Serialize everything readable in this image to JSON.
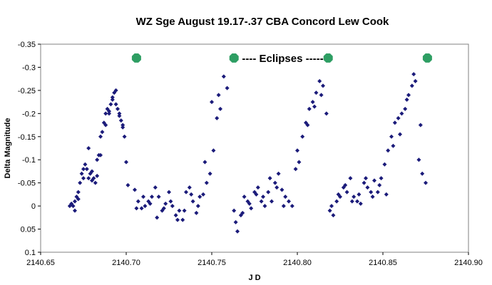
{
  "chart_data": {
    "type": "scatter",
    "title": "WZ Sge August 19.17-.37 CBA Concord Lew Cook",
    "xlabel": "J D",
    "ylabel": "Delta Magnitude",
    "xlim": [
      2140.65,
      2140.9
    ],
    "ylim": [
      -0.35,
      0.1
    ],
    "y_inverted": true,
    "grid": false,
    "legend": "none",
    "x_ticks": [
      2140.65,
      2140.7,
      2140.75,
      2140.8,
      2140.85,
      2140.9
    ],
    "x_tick_labels": [
      "2140.65",
      "2140.70",
      "2140.75",
      "2140.80",
      "2140.85",
      "2140.90"
    ],
    "y_ticks": [
      -0.35,
      -0.3,
      -0.25,
      -0.2,
      -0.15,
      -0.1,
      -0.05,
      0,
      0.05,
      0.1
    ],
    "y_tick_labels": [
      "-0.35",
      "-0.3",
      "-0.25",
      "-0.2",
      "-0.15",
      "-0.1",
      "-0.05",
      "0",
      "0.05",
      "0.1"
    ],
    "colors": {
      "points": "#1b1b7a",
      "eclipse": "#2e9e63",
      "plot_bg": "#ffffff"
    },
    "annotation": "---- Eclipses ------",
    "eclipses": {
      "x": [
        2140.706,
        2140.763,
        2140.818,
        2140.876
      ],
      "y": [
        -0.32,
        -0.32,
        -0.32,
        -0.32
      ]
    },
    "series": [
      {
        "x": [
          2140.667,
          2140.668,
          2140.669,
          2140.67,
          2140.671,
          2140.672,
          2140.673,
          2140.674,
          2140.675,
          2140.676,
          2140.677,
          2140.678,
          2140.679,
          2140.68,
          2140.681,
          2140.682,
          2140.683,
          2140.684,
          2140.685,
          2140.686,
          2140.687,
          2140.688,
          2140.689,
          2140.69,
          2140.691,
          2140.692,
          2140.693,
          2140.694,
          2140.695,
          2140.696,
          2140.697,
          2140.698,
          2140.699,
          2140.7,
          2140.701,
          2140.67,
          2140.672,
          2140.675,
          2140.678,
          2140.68,
          2140.683,
          2140.685,
          2140.688,
          2140.69,
          2140.692,
          2140.694,
          2140.696,
          2140.698,
          2140.705,
          2140.707,
          2140.709,
          2140.711,
          2140.713,
          2140.715,
          2140.717,
          2140.719,
          2140.721,
          2140.723,
          2140.725,
          2140.727,
          2140.729,
          2140.731,
          2140.733,
          2140.735,
          2140.737,
          2140.739,
          2140.741,
          2140.743,
          2140.745,
          2140.747,
          2140.749,
          2140.751,
          2140.753,
          2140.755,
          2140.757,
          2140.759,
          2140.706,
          2140.71,
          2140.714,
          2140.718,
          2140.722,
          2140.726,
          2140.73,
          2140.734,
          2140.738,
          2140.742,
          2140.746,
          2140.75,
          2140.754,
          2140.763,
          2140.765,
          2140.767,
          2140.769,
          2140.771,
          2140.773,
          2140.775,
          2140.777,
          2140.779,
          2140.781,
          2140.783,
          2140.785,
          2140.787,
          2140.789,
          2140.791,
          2140.793,
          2140.795,
          2140.797,
          2140.799,
          2140.801,
          2140.803,
          2140.805,
          2140.807,
          2140.809,
          2140.811,
          2140.813,
          2140.815,
          2140.817,
          2140.764,
          2140.768,
          2140.772,
          2140.776,
          2140.78,
          2140.784,
          2140.788,
          2140.792,
          2140.8,
          2140.806,
          2140.81,
          2140.814,
          2140.819,
          2140.821,
          2140.823,
          2140.825,
          2140.827,
          2140.829,
          2140.831,
          2140.833,
          2140.835,
          2140.837,
          2140.839,
          2140.841,
          2140.843,
          2140.845,
          2140.847,
          2140.849,
          2140.851,
          2140.853,
          2140.855,
          2140.857,
          2140.859,
          2140.861,
          2140.863,
          2140.865,
          2140.867,
          2140.869,
          2140.871,
          2140.873,
          2140.875,
          2140.82,
          2140.824,
          2140.828,
          2140.832,
          2140.836,
          2140.84,
          2140.844,
          2140.848,
          2140.852,
          2140.856,
          2140.86,
          2140.864,
          2140.868,
          2140.872
        ],
        "y": [
          0.0,
          -0.005,
          0.0,
          -0.01,
          -0.02,
          -0.03,
          -0.05,
          -0.07,
          -0.08,
          -0.09,
          -0.08,
          -0.06,
          -0.07,
          -0.055,
          -0.06,
          -0.05,
          -0.1,
          -0.11,
          -0.15,
          -0.16,
          -0.18,
          -0.2,
          -0.21,
          -0.2,
          -0.22,
          -0.235,
          -0.245,
          -0.22,
          -0.21,
          -0.195,
          -0.185,
          -0.17,
          -0.15,
          -0.095,
          -0.045,
          0.01,
          -0.015,
          -0.06,
          -0.125,
          -0.075,
          -0.065,
          -0.11,
          -0.175,
          -0.205,
          -0.23,
          -0.25,
          -0.2,
          -0.175,
          -0.035,
          -0.01,
          0.005,
          0.0,
          -0.01,
          -0.02,
          -0.04,
          -0.02,
          0.01,
          -0.005,
          -0.03,
          0.0,
          0.02,
          0.01,
          0.03,
          -0.03,
          -0.04,
          -0.01,
          0.015,
          -0.02,
          -0.025,
          -0.05,
          -0.07,
          -0.12,
          -0.19,
          -0.21,
          -0.28,
          -0.255,
          0.005,
          -0.02,
          -0.005,
          0.025,
          0.005,
          -0.01,
          0.03,
          0.01,
          -0.025,
          0.0,
          -0.095,
          -0.225,
          -0.24,
          0.01,
          0.055,
          0.02,
          -0.02,
          -0.01,
          0.005,
          -0.03,
          -0.04,
          -0.01,
          0.0,
          -0.03,
          -0.01,
          -0.05,
          -0.07,
          -0.035,
          -0.02,
          -0.01,
          0.0,
          -0.08,
          -0.095,
          -0.15,
          -0.18,
          -0.21,
          -0.225,
          -0.245,
          -0.27,
          -0.26,
          -0.2,
          0.035,
          0.015,
          -0.005,
          -0.025,
          -0.02,
          -0.06,
          -0.04,
          0.0,
          -0.12,
          -0.175,
          -0.215,
          -0.24,
          0.01,
          0.02,
          -0.01,
          -0.02,
          -0.04,
          -0.03,
          -0.06,
          -0.02,
          -0.01,
          -0.005,
          -0.05,
          -0.04,
          -0.03,
          -0.055,
          -0.03,
          -0.06,
          -0.09,
          -0.12,
          -0.15,
          -0.18,
          -0.19,
          -0.2,
          -0.21,
          -0.24,
          -0.26,
          -0.27,
          -0.1,
          -0.07,
          -0.05,
          0.0,
          -0.025,
          -0.045,
          -0.01,
          -0.025,
          -0.06,
          -0.02,
          -0.045,
          -0.025,
          -0.13,
          -0.155,
          -0.23,
          -0.285,
          -0.175
        ]
      }
    ]
  }
}
